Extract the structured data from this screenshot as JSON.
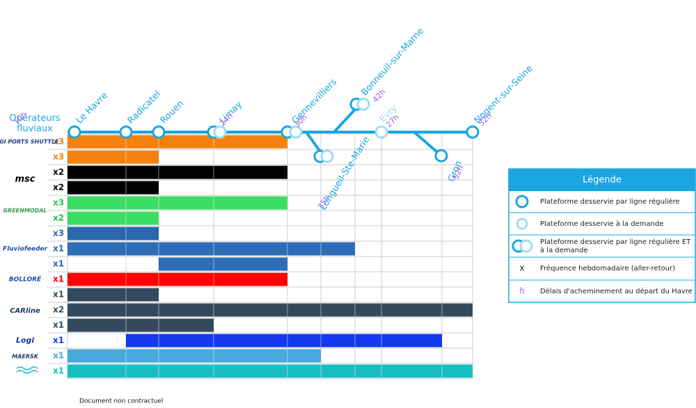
{
  "header": {
    "title": "Opérateurs fluviaux"
  },
  "stations": [
    {
      "name": "Le Havre"
    },
    {
      "name": "Radicatel"
    },
    {
      "name": "Rouen",
      "delay": "10h"
    },
    {
      "name": "Limay",
      "delay": "24h"
    },
    {
      "name": "Gennevilliers",
      "delay": "30h"
    },
    {
      "name": "Longueil-Ste-Marie",
      "delay": "35h"
    },
    {
      "name": "Bonneuil-sur-Marne",
      "delay": "42h"
    },
    {
      "name": "Evry",
      "delay": "27h"
    },
    {
      "name": "Gron",
      "delay": "52h"
    },
    {
      "name": "Nogent-sur-Seine",
      "delay": "52h"
    }
  ],
  "operators": [
    {
      "name": "LOGI PORTS SHUTTLE"
    },
    {
      "name": "msc"
    },
    {
      "name": "GREENMODAL"
    },
    {
      "name": "Fluviofeeder"
    },
    {
      "name": "BOLLORÉ"
    },
    {
      "name": "CARline"
    },
    {
      "name": "Logi"
    },
    {
      "name": "MAERSK"
    }
  ],
  "rows": [
    {
      "frequency": "x3"
    },
    {
      "frequency": "x3"
    },
    {
      "frequency": "x2"
    },
    {
      "frequency": "x2"
    },
    {
      "frequency": "x3"
    },
    {
      "frequency": "x2"
    },
    {
      "frequency": "x3"
    },
    {
      "frequency": "x1"
    },
    {
      "frequency": "x1"
    },
    {
      "frequency": "x1"
    },
    {
      "frequency": "x1"
    },
    {
      "frequency": "x2"
    },
    {
      "frequency": "x1"
    },
    {
      "frequency": "x1"
    },
    {
      "frequency": "x1"
    },
    {
      "frequency": "x1"
    }
  ],
  "legend": {
    "title": "Légende",
    "items": [
      {
        "label": "Plateforme desservie par ligne régulière"
      },
      {
        "label": "Plateforme desservie à la demande"
      },
      {
        "label": "Plateforme desservie par ligne régulière ET à la demande"
      },
      {
        "symbol": "x",
        "label": "Fréquence hebdomadaire (aller-retour)"
      },
      {
        "symbol": "h",
        "label": "Délais d'acheminement au départ du Havre"
      }
    ]
  },
  "footer": {
    "note": "Document non contractuel"
  }
}
